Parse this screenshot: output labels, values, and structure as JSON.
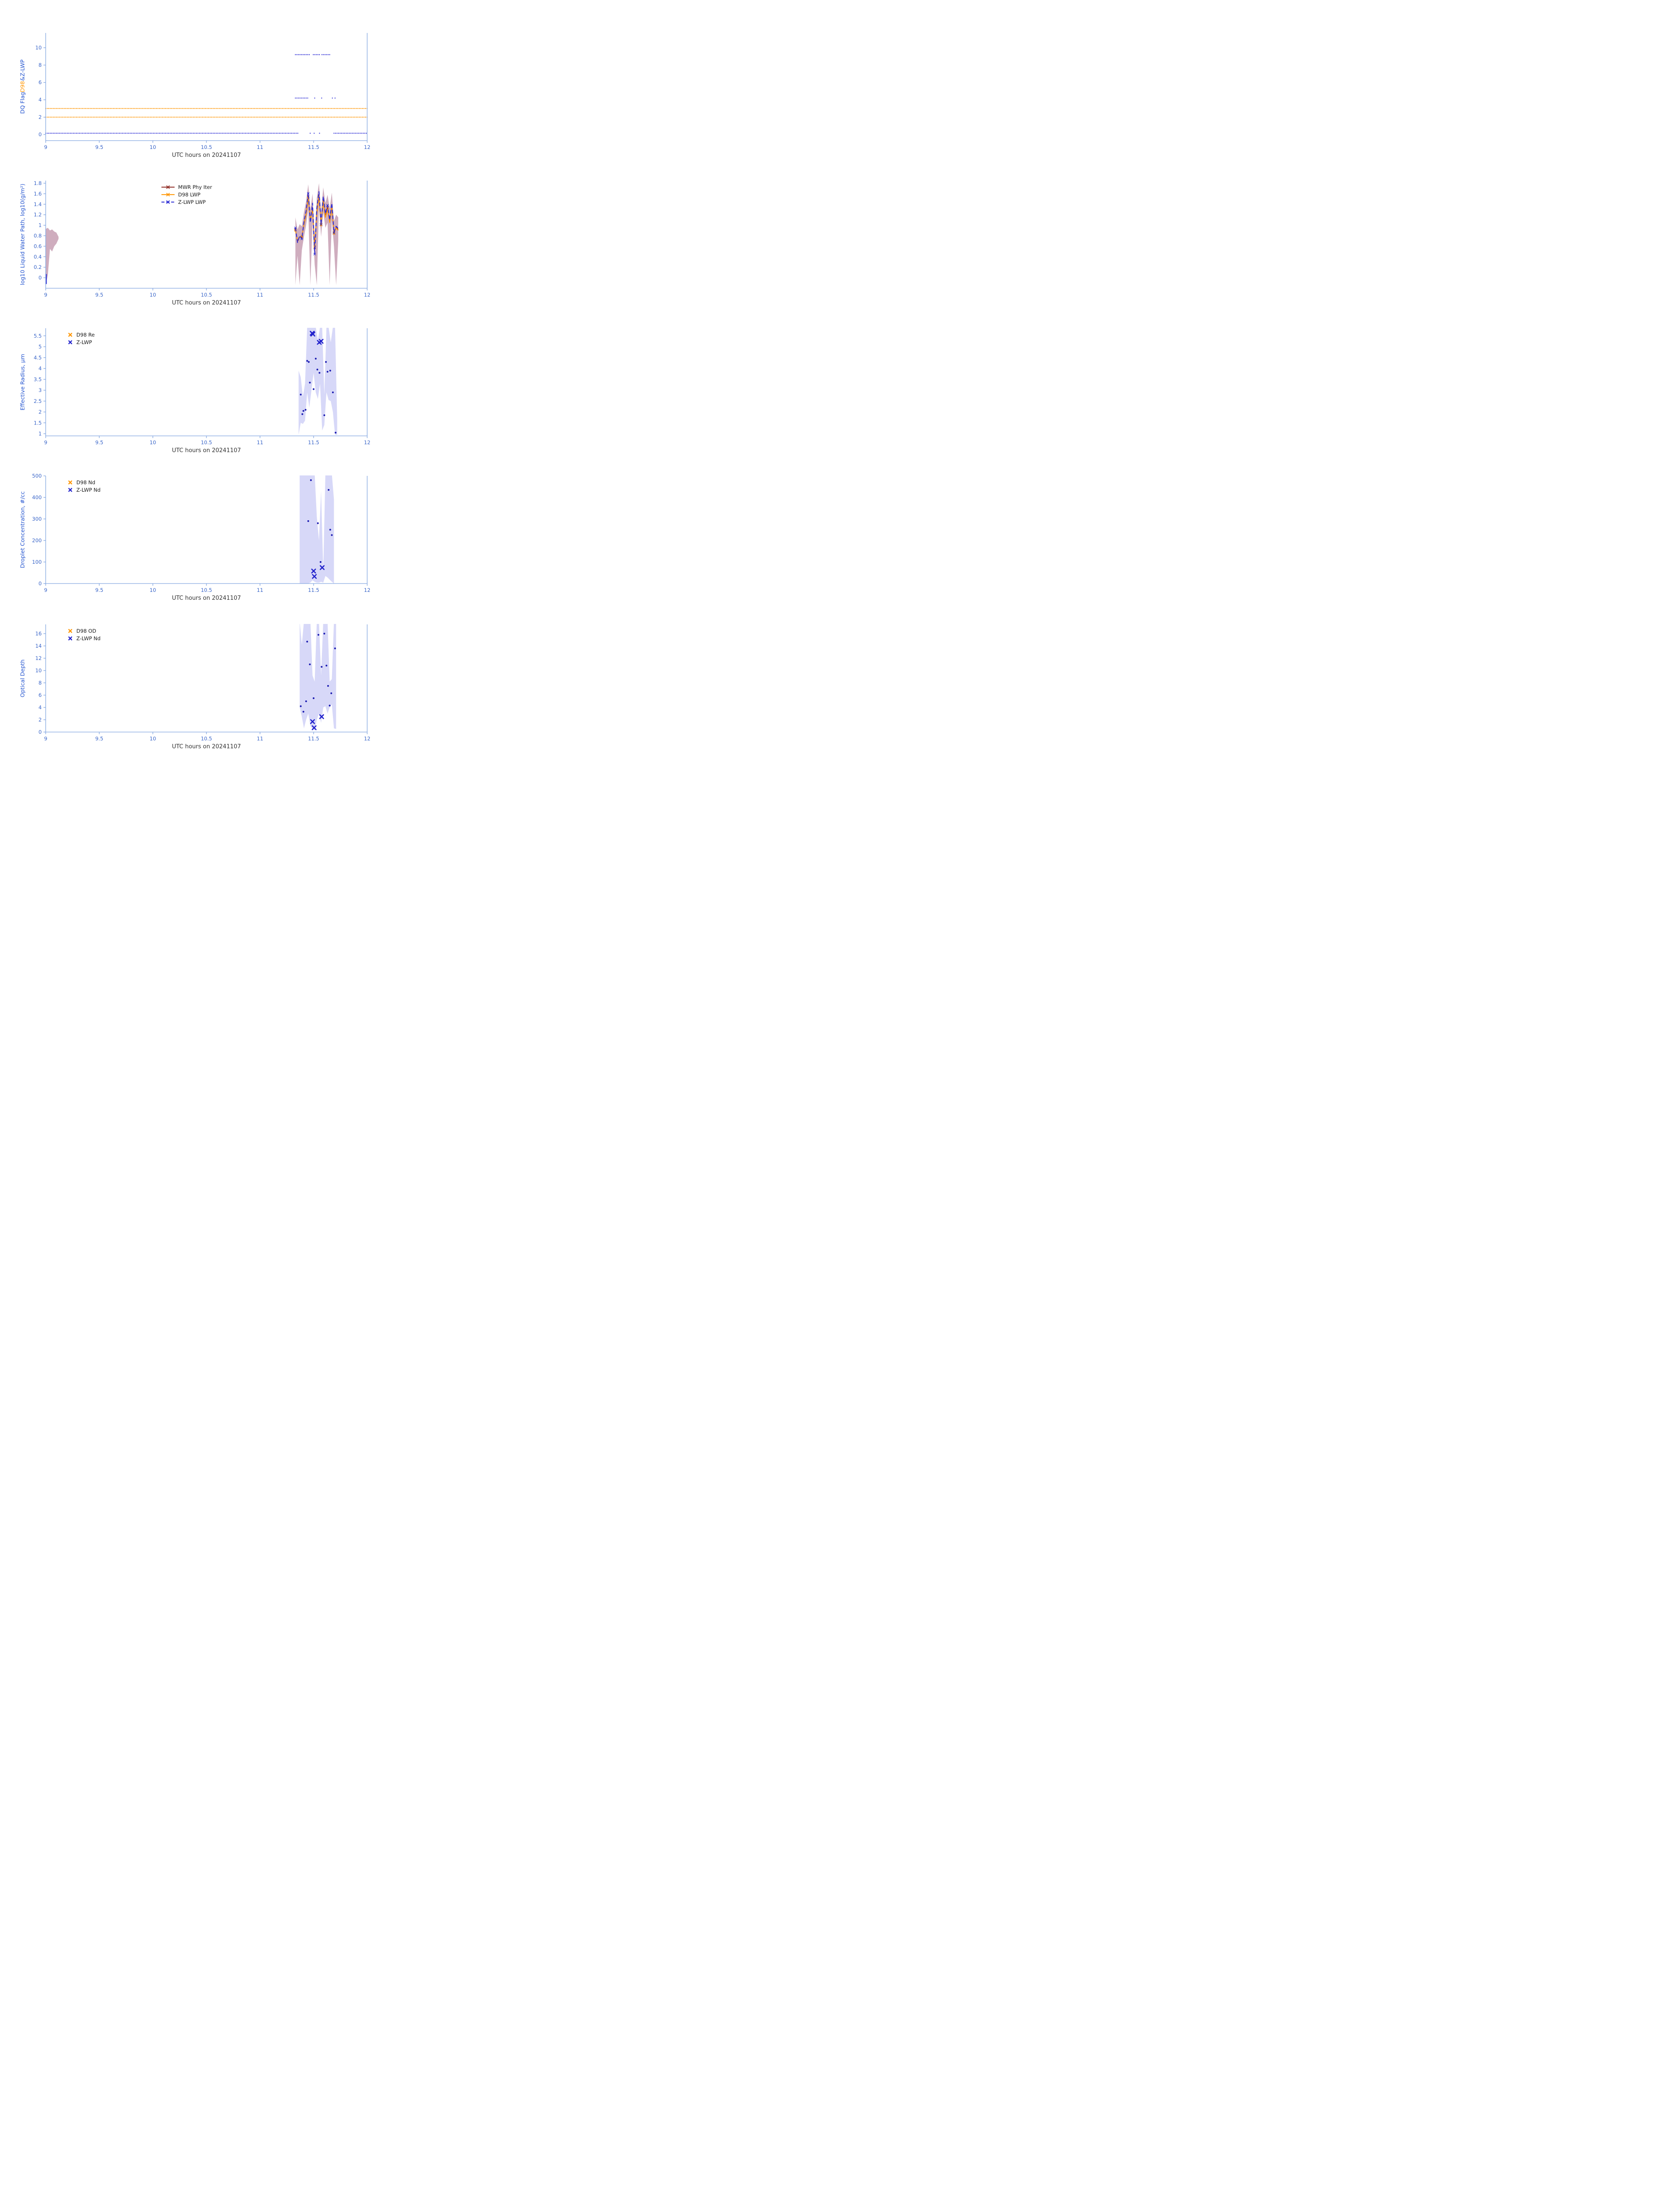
{
  "figure": {
    "background": "#ffffff"
  },
  "labels": {
    "xlabel": "UTC hours on 20241107"
  },
  "colors": {
    "axis": "#84A7E0",
    "tick_label": "#3A66C9",
    "ylabel": "#2253CF",
    "xlabel": "#333333",
    "orange": "#FF9500",
    "dark_red": "#8F2A22",
    "blue_line": "#2A2AD4",
    "scatter_dot": "#1A1AB0",
    "bold_x": "#2222CC",
    "envelope_red": "rgba(140,60,100,0.42)",
    "envelope_blue": "rgba(110,115,230,0.28)",
    "legend_text": "#1A1A1A"
  },
  "chart_data": [
    {
      "id": "dq-flag",
      "type": "scatter",
      "ylabel_segments": [
        {
          "text": "DQ Flag ",
          "color": "#2253CF"
        },
        {
          "text": "D98",
          "color": "#FF9500"
        },
        {
          "text": " & ",
          "color": "#2253CF"
        },
        {
          "text": "Z-LWP",
          "color": "#2253CF"
        }
      ],
      "xlim": [
        9,
        12
      ],
      "ylim": [
        -0.7,
        11.7
      ],
      "xticks": [
        9,
        9.5,
        10,
        10.5,
        11,
        11.5,
        12
      ],
      "yticks": [
        0,
        2,
        4,
        6,
        8,
        10
      ],
      "dotted_rows": [
        {
          "name": "d98-flag-3",
          "color": "#FF9500",
          "y": 3,
          "segments": [
            [
              9,
              12
            ]
          ]
        },
        {
          "name": "d98-flag-2",
          "color": "#FF9500",
          "y": 2,
          "segments": [
            [
              9,
              12
            ]
          ]
        },
        {
          "name": "zlwp-flag-0",
          "color": "#2A2AD4",
          "y": 0.15,
          "segments": [
            [
              9,
              11.36
            ],
            [
              11.468,
              11.478
            ],
            [
              11.505,
              11.515
            ],
            [
              11.555,
              11.563
            ],
            [
              11.69,
              12
            ]
          ]
        },
        {
          "name": "zlwp-flag-4",
          "color": "#2A2AD4",
          "y": 4.2,
          "segments": [
            [
              11.33,
              11.45
            ],
            [
              11.51,
              11.523
            ],
            [
              11.575,
              11.585
            ],
            [
              11.675,
              11.688
            ],
            [
              11.7,
              11.714
            ]
          ]
        },
        {
          "name": "zlwp-flag-9",
          "color": "#2A2AD4",
          "y": 9.2,
          "segments": [
            [
              11.33,
              11.46
            ],
            [
              11.497,
              11.56
            ],
            [
              11.578,
              11.655
            ]
          ]
        }
      ]
    },
    {
      "id": "lwp",
      "type": "line",
      "ylabel": "log10 Liquid Water Path, log10(g/m²)",
      "xlim": [
        9,
        12
      ],
      "ylim": [
        -0.2,
        1.85
      ],
      "xticks": [
        9,
        9.5,
        10,
        10.5,
        11,
        11.5,
        12
      ],
      "yticks": [
        0,
        0.2,
        0.4,
        0.6,
        0.8,
        1,
        1.2,
        1.4,
        1.6,
        1.8
      ],
      "legend": {
        "x": 0.36,
        "y": 0.02,
        "items": [
          {
            "label": "MWR Phy Iter",
            "color": "#8F2A22",
            "style": "line-x"
          },
          {
            "label": "D98 LWP",
            "color": "#FF9500",
            "style": "line-x"
          },
          {
            "label": "Z-LWP LWP",
            "color": "#2A2AD4",
            "style": "dash-x"
          }
        ]
      },
      "envelopes": [
        {
          "fill": "rgba(140,60,100,0.42)",
          "x": [
            9.0,
            9.02,
            9.04,
            9.06,
            9.08,
            9.1,
            9.12
          ],
          "top": [
            0.93,
            0.95,
            0.9,
            0.92,
            0.88,
            0.86,
            0.78
          ],
          "bottom": [
            -0.14,
            0.05,
            0.55,
            0.5,
            0.6,
            0.65,
            0.74
          ]
        },
        {
          "fill": "rgba(140,60,100,0.42)",
          "x": [
            11.33,
            11.35,
            11.37,
            11.39,
            11.41,
            11.43,
            11.45,
            11.47,
            11.49,
            11.51,
            11.53,
            11.55,
            11.57,
            11.59,
            11.61,
            11.63,
            11.65,
            11.67,
            11.69,
            11.71,
            11.73
          ],
          "top": [
            1.15,
            0.92,
            1.02,
            0.98,
            1.25,
            1.45,
            1.78,
            1.3,
            1.6,
            0.78,
            1.52,
            1.8,
            1.25,
            1.72,
            1.42,
            1.58,
            1.32,
            1.62,
            1.08,
            1.2,
            1.15
          ],
          "bottom": [
            -0.14,
            0.42,
            -0.14,
            0.52,
            0.78,
            1.0,
            1.3,
            -0.14,
            1.05,
            0.25,
            -0.14,
            1.35,
            0.78,
            1.25,
            0.95,
            1.05,
            -0.14,
            1.1,
            0.6,
            -0.14,
            0.7
          ]
        }
      ],
      "vlines": [
        {
          "x": 9.005,
          "y0": -0.12,
          "y1": 0.07,
          "color": "#2A2AD4",
          "width": 2.5
        }
      ],
      "lines": [
        {
          "name": "mwr-phy-iter",
          "color": "#8F2A22",
          "width": 1.6,
          "dashed": false,
          "x": [
            11.33,
            11.35,
            11.37,
            11.39,
            11.41,
            11.43,
            11.45,
            11.47,
            11.49,
            11.51,
            11.53,
            11.55,
            11.57,
            11.59,
            11.61,
            11.63,
            11.65,
            11.67,
            11.69,
            11.71,
            11.73
          ],
          "y": [
            0.92,
            0.69,
            0.78,
            0.77,
            1.02,
            1.22,
            1.55,
            1.08,
            1.33,
            0.57,
            1.25,
            1.58,
            1.01,
            1.48,
            1.18,
            1.33,
            1.07,
            1.36,
            0.85,
            0.96,
            0.92
          ]
        },
        {
          "name": "d98-lwp",
          "color": "#FF9500",
          "width": 1.8,
          "dashed": false,
          "x": [
            11.33,
            11.35,
            11.37,
            11.39,
            11.41,
            11.43,
            11.45,
            11.47,
            11.49,
            11.51,
            11.53,
            11.55,
            11.57,
            11.59,
            11.61,
            11.63,
            11.65,
            11.67,
            11.69,
            11.71,
            11.73
          ],
          "y": [
            0.9,
            0.71,
            0.77,
            0.79,
            1.0,
            1.2,
            1.52,
            1.1,
            1.3,
            0.6,
            1.22,
            1.55,
            1.0,
            1.45,
            1.15,
            1.3,
            1.05,
            1.33,
            0.84,
            0.95,
            0.9
          ]
        },
        {
          "name": "z-lwp-lwp",
          "color": "#2A2AD4",
          "width": 2,
          "dashed": true,
          "x": [
            11.33,
            11.35,
            11.37,
            11.39,
            11.41,
            11.43,
            11.45,
            11.47,
            11.49,
            11.51,
            11.53,
            11.55,
            11.57,
            11.59,
            11.61,
            11.63,
            11.65,
            11.67,
            11.69,
            11.71,
            11.73
          ],
          "y": [
            0.95,
            0.67,
            0.8,
            0.74,
            1.06,
            1.27,
            1.61,
            1.05,
            1.42,
            0.45,
            1.32,
            1.64,
            1.02,
            1.55,
            1.22,
            1.38,
            1.1,
            1.42,
            0.86,
            0.98,
            0.94
          ]
        }
      ]
    },
    {
      "id": "effective-radius",
      "type": "scatter",
      "ylabel": "Effective Radius, µm",
      "xlim": [
        9,
        12
      ],
      "ylim": [
        0.9,
        5.85
      ],
      "xticks": [
        9,
        9.5,
        10,
        10.5,
        11,
        11.5,
        12
      ],
      "yticks": [
        1,
        1.5,
        2,
        2.5,
        3,
        3.5,
        4,
        4.5,
        5,
        5.5
      ],
      "legend": {
        "x": 0.06,
        "y": 0.02,
        "items": [
          {
            "label": "D98 Re",
            "color": "#FF9500",
            "style": "x"
          },
          {
            "label": "Z-LWP",
            "color": "#2222CC",
            "style": "x"
          }
        ]
      },
      "envelopes": [
        {
          "fill": "rgba(110,115,230,0.28)",
          "x": [
            11.36,
            11.38,
            11.4,
            11.42,
            11.44,
            11.46,
            11.48,
            11.5,
            11.52,
            11.54,
            11.56,
            11.58,
            11.6,
            11.62,
            11.64,
            11.66,
            11.68,
            11.7,
            11.72
          ],
          "top": [
            3.9,
            3.6,
            2.7,
            3.3,
            5.9,
            5.9,
            5.9,
            5.9,
            5.9,
            5.3,
            5.9,
            5.9,
            2.8,
            5.9,
            5.9,
            5.2,
            5.9,
            5.9,
            1.7
          ],
          "bottom": [
            0.95,
            1.5,
            1.45,
            1.6,
            2.9,
            2.2,
            3.0,
            3.8,
            2.9,
            2.6,
            3.3,
            1.15,
            1.4,
            2.9,
            2.55,
            2.5,
            2.0,
            0.95,
            0.95
          ]
        }
      ],
      "scatter": [
        {
          "name": "z-lwp-re-dots",
          "marker": "dot",
          "color": "#1A1AB0",
          "points": [
            [
              11.38,
              2.8
            ],
            [
              11.395,
              1.9
            ],
            [
              11.405,
              2.05
            ],
            [
              11.425,
              2.1
            ],
            [
              11.44,
              4.35
            ],
            [
              11.455,
              4.3
            ],
            [
              11.465,
              3.35
            ],
            [
              11.5,
              3.05
            ],
            [
              11.52,
              4.45
            ],
            [
              11.535,
              3.95
            ],
            [
              11.555,
              3.8
            ],
            [
              11.6,
              1.85
            ],
            [
              11.615,
              4.3
            ],
            [
              11.63,
              3.85
            ],
            [
              11.655,
              3.9
            ],
            [
              11.68,
              2.9
            ],
            [
              11.705,
              1.05
            ]
          ]
        },
        {
          "name": "z-lwp-re-x",
          "marker": "boldx",
          "color": "#2222CC",
          "points": [
            [
              11.487,
              5.62
            ],
            [
              11.493,
              5.58
            ],
            [
              11.553,
              5.2
            ],
            [
              11.57,
              5.25
            ]
          ]
        }
      ]
    },
    {
      "id": "droplet-concentration",
      "type": "scatter",
      "ylabel": "Droplet Concentration, #/cc",
      "xlim": [
        9,
        12
      ],
      "ylim": [
        0,
        500
      ],
      "xticks": [
        9,
        9.5,
        10,
        10.5,
        11,
        11.5,
        12
      ],
      "yticks": [
        0,
        100,
        200,
        300,
        400,
        500
      ],
      "legend": {
        "x": 0.06,
        "y": 0.02,
        "items": [
          {
            "label": "D98 Nd",
            "color": "#FF9500",
            "style": "x"
          },
          {
            "label": "Z-LWP Nd",
            "color": "#2222CC",
            "style": "x"
          }
        ]
      },
      "envelopes": [
        {
          "fill": "rgba(110,115,230,0.28)",
          "x": [
            11.37,
            11.39,
            11.41,
            11.43,
            11.45,
            11.47,
            11.49,
            11.51,
            11.53,
            11.55,
            11.57,
            11.59,
            11.61,
            11.63,
            11.65,
            11.67,
            11.69
          ],
          "top": [
            510,
            510,
            510,
            510,
            510,
            510,
            510,
            510,
            310,
            200,
            430,
            60,
            510,
            510,
            510,
            510,
            390
          ],
          "bottom": [
            0,
            0,
            0,
            0,
            0,
            5,
            15,
            8,
            4,
            4,
            8,
            4,
            35,
            28,
            18,
            8,
            0
          ]
        }
      ],
      "scatter": [
        {
          "name": "z-lwp-nd-dots",
          "marker": "dot",
          "color": "#1A1AB0",
          "points": [
            [
              11.45,
              290
            ],
            [
              11.475,
              480
            ],
            [
              11.54,
              280
            ],
            [
              11.565,
              100
            ],
            [
              11.64,
              435
            ],
            [
              11.655,
              250
            ],
            [
              11.67,
              225
            ]
          ]
        },
        {
          "name": "z-lwp-nd-x",
          "marker": "boldx",
          "color": "#2222CC",
          "points": [
            [
              11.5,
              58
            ],
            [
              11.507,
              33
            ],
            [
              11.58,
              74
            ]
          ]
        }
      ]
    },
    {
      "id": "optical-depth",
      "type": "scatter",
      "ylabel": "Optical Depth",
      "xlim": [
        9,
        12
      ],
      "ylim": [
        0,
        17.5
      ],
      "xticks": [
        9,
        9.5,
        10,
        10.5,
        11,
        11.5,
        12
      ],
      "yticks": [
        0,
        2,
        4,
        6,
        8,
        10,
        12,
        14,
        16
      ],
      "legend": {
        "x": 0.06,
        "y": 0.02,
        "items": [
          {
            "label": "D98 OD",
            "color": "#FF9500",
            "style": "x"
          },
          {
            "label": "Z-LWP Nd",
            "color": "#2222CC",
            "style": "x"
          }
        ]
      },
      "envelopes": [
        {
          "fill": "rgba(110,115,230,0.28)",
          "x": [
            11.37,
            11.39,
            11.41,
            11.43,
            11.45,
            11.47,
            11.49,
            11.51,
            11.53,
            11.55,
            11.57,
            11.59,
            11.61,
            11.63,
            11.65,
            11.67,
            11.69,
            11.71
          ],
          "top": [
            18,
            14.2,
            18,
            18,
            18,
            18,
            9.2,
            8.2,
            18,
            18,
            9.2,
            18,
            18,
            18,
            8.2,
            8.6,
            18,
            18
          ],
          "bottom": [
            4.0,
            2.5,
            0.6,
            2.0,
            3.0,
            1.0,
            0.5,
            0.3,
            2.0,
            3.0,
            1.5,
            4.0,
            4.2,
            3.0,
            4.0,
            4.5,
            0.6,
            0.5
          ]
        }
      ],
      "scatter": [
        {
          "name": "z-lwp-od-dots",
          "marker": "dot",
          "color": "#1A1AB0",
          "points": [
            [
              11.38,
              4.2
            ],
            [
              11.405,
              3.3
            ],
            [
              11.43,
              5.0
            ],
            [
              11.44,
              14.7
            ],
            [
              11.465,
              11.0
            ],
            [
              11.5,
              5.5
            ],
            [
              11.545,
              15.8
            ],
            [
              11.575,
              10.6
            ],
            [
              11.6,
              16.0
            ],
            [
              11.62,
              10.8
            ],
            [
              11.635,
              7.5
            ],
            [
              11.65,
              4.3
            ],
            [
              11.665,
              6.3
            ],
            [
              11.7,
              13.6
            ]
          ]
        },
        {
          "name": "z-lwp-od-x",
          "marker": "boldx",
          "color": "#2222CC",
          "points": [
            [
              11.49,
              1.7
            ],
            [
              11.505,
              0.7
            ],
            [
              11.575,
              2.5
            ]
          ]
        }
      ]
    }
  ]
}
